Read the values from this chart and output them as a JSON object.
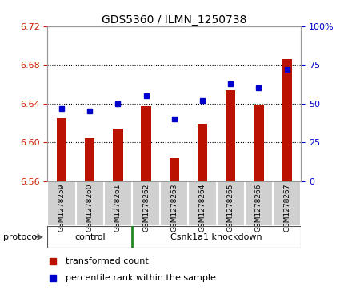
{
  "title": "GDS5360 / ILMN_1250738",
  "samples": [
    "GSM1278259",
    "GSM1278260",
    "GSM1278261",
    "GSM1278262",
    "GSM1278263",
    "GSM1278264",
    "GSM1278265",
    "GSM1278266",
    "GSM1278267"
  ],
  "transformed_count": [
    6.625,
    6.604,
    6.614,
    6.637,
    6.584,
    6.619,
    6.654,
    6.639,
    6.686
  ],
  "percentile_rank": [
    47,
    45,
    50,
    55,
    40,
    52,
    63,
    60,
    72
  ],
  "ylim_left": [
    6.56,
    6.72
  ],
  "ylim_right": [
    0,
    100
  ],
  "yticks_left": [
    6.56,
    6.6,
    6.64,
    6.68,
    6.72
  ],
  "yticks_right": [
    0,
    25,
    50,
    75,
    100
  ],
  "bar_color": "#bb1100",
  "dot_color": "#0000cc",
  "bar_bottom": 6.56,
  "control_count": 3,
  "control_label": "control",
  "knockdown_label": "Csnk1a1 knockdown",
  "protocol_label": "protocol",
  "legend_bar_label": "transformed count",
  "legend_dot_label": "percentile rank within the sample",
  "tick_color_left": "#cc2200",
  "tick_color_right": "#0000cc",
  "background_color": "#ffffff",
  "plot_bg_color": "#ffffff",
  "sample_box_color": "#d0d0d0",
  "protocol_band_color": "#77dd77",
  "grid_dotted_color": "#000000"
}
